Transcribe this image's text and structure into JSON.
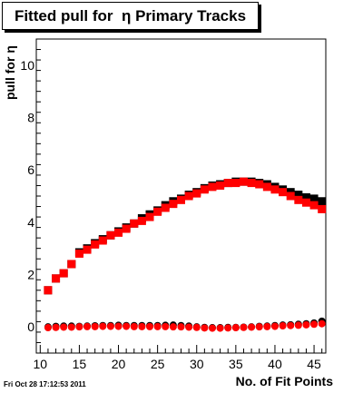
{
  "header": {
    "title": "Fitted pull for  η Primary Tracks"
  },
  "footer": {
    "timestamp": "Fri Oct 28 17:12:53 2011"
  },
  "chart_data": {
    "type": "scatter",
    "title": "Fitted pull for  η Primary Tracks",
    "xlabel": "No. of Fit Points",
    "ylabel": "pull for η",
    "xlim": [
      9.5,
      46.5
    ],
    "ylim": [
      -1,
      11
    ],
    "x_ticks": [
      10,
      15,
      20,
      25,
      30,
      35,
      40,
      45
    ],
    "y_ticks": [
      0,
      2,
      4,
      6,
      8,
      10
    ],
    "grid": false,
    "colors": {
      "black_series": "#000000",
      "red_series": "#ff0000"
    },
    "series": [
      {
        "group": "black",
        "x": [
          11,
          12,
          13,
          14,
          15,
          16,
          17,
          18,
          19,
          20,
          21,
          22,
          23,
          24,
          25,
          26,
          27,
          28,
          29,
          30,
          31,
          32,
          33,
          34,
          35,
          36,
          37,
          38,
          39,
          40,
          41,
          42,
          43,
          44,
          45,
          46
        ],
        "values": [
          1.4,
          1.85,
          2.05,
          2.4,
          2.85,
          3.0,
          3.2,
          3.35,
          3.5,
          3.65,
          3.8,
          3.95,
          4.15,
          4.3,
          4.45,
          4.65,
          4.8,
          4.9,
          5.05,
          5.15,
          5.3,
          5.4,
          5.45,
          5.5,
          5.55,
          5.55,
          5.55,
          5.5,
          5.45,
          5.35,
          5.25,
          5.15,
          5.05,
          4.95,
          4.9,
          4.8
        ]
      },
      {
        "group": "red",
        "x": [
          11,
          12,
          13,
          14,
          15,
          16,
          17,
          18,
          19,
          20,
          21,
          22,
          23,
          24,
          25,
          26,
          27,
          28,
          29,
          30,
          31,
          32,
          33,
          34,
          35,
          36,
          37,
          38,
          39,
          40,
          41,
          42,
          43,
          44,
          45,
          46
        ],
        "values": [
          1.4,
          1.85,
          2.05,
          2.4,
          2.8,
          2.95,
          3.15,
          3.3,
          3.5,
          3.6,
          3.75,
          3.95,
          4.05,
          4.2,
          4.4,
          4.55,
          4.7,
          4.85,
          5.0,
          5.1,
          5.25,
          5.35,
          5.4,
          5.5,
          5.5,
          5.55,
          5.5,
          5.45,
          5.35,
          5.25,
          5.15,
          5.0,
          4.85,
          4.75,
          4.65,
          4.5
        ]
      },
      {
        "group": "black",
        "x": [
          11,
          12,
          13,
          14,
          15,
          16,
          17,
          18,
          19,
          20,
          21,
          22,
          23,
          24,
          25,
          26,
          27,
          28,
          29,
          30,
          31,
          32,
          33,
          34,
          35,
          36,
          37,
          38,
          39,
          40,
          41,
          42,
          43,
          44,
          45,
          46
        ],
        "values": [
          0.0,
          0.02,
          0.03,
          0.03,
          0.02,
          0.03,
          0.04,
          0.05,
          0.05,
          0.06,
          0.05,
          0.05,
          0.05,
          0.05,
          0.05,
          0.06,
          0.07,
          0.05,
          0.03,
          0.0,
          -0.02,
          -0.03,
          -0.03,
          -0.02,
          -0.02,
          -0.01,
          0.0,
          0.02,
          0.03,
          0.05,
          0.07,
          0.08,
          0.1,
          0.12,
          0.15,
          0.22
        ]
      },
      {
        "group": "red",
        "x": [
          11,
          12,
          13,
          14,
          15,
          16,
          17,
          18,
          19,
          20,
          21,
          22,
          23,
          24,
          25,
          26,
          27,
          28,
          29,
          30,
          31,
          32,
          33,
          34,
          35,
          36,
          37,
          38,
          39,
          40,
          41,
          42,
          43,
          44,
          45,
          46
        ],
        "values": [
          -0.03,
          -0.02,
          -0.01,
          -0.01,
          0.0,
          0.01,
          0.01,
          0.02,
          0.02,
          0.02,
          0.02,
          0.01,
          0.01,
          0.01,
          0.01,
          0.01,
          0.0,
          0.0,
          -0.01,
          -0.02,
          -0.04,
          -0.05,
          -0.05,
          -0.04,
          -0.03,
          -0.02,
          -0.01,
          0.0,
          0.01,
          0.02,
          0.04,
          0.05,
          0.06,
          0.08,
          0.1,
          0.12
        ]
      }
    ]
  }
}
